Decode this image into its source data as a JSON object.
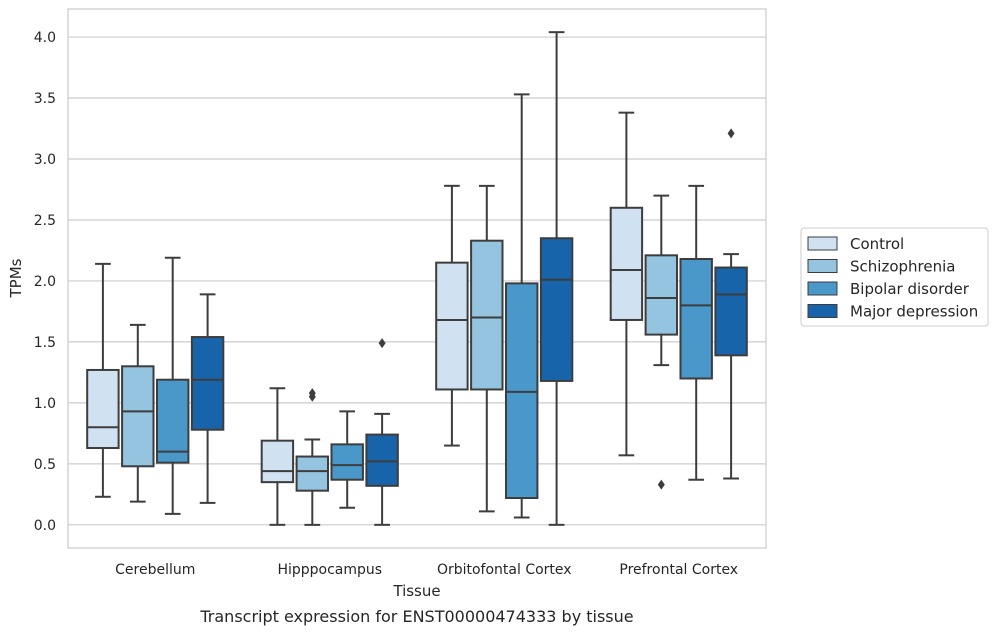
{
  "chart_data": {
    "type": "box",
    "xlabel": "Tissue",
    "ylabel": "TPMs",
    "caption": "Transcript expression for ENST00000474333 by tissue",
    "ylim": [
      -0.19,
      4.23
    ],
    "yticks": [
      "0.0",
      "0.5",
      "1.0",
      "1.5",
      "2.0",
      "2.5",
      "3.0",
      "3.5",
      "4.0"
    ],
    "grid": "horizontal",
    "legend_position": "right",
    "categories": [
      "Cerebellum",
      "Hipppocampus",
      "Orbitofontal Cortex",
      "Prefrontal Cortex"
    ],
    "series": [
      {
        "name": "Control",
        "color": "#d0e1f2",
        "boxes": [
          {
            "whislo": 0.23,
            "q1": 0.63,
            "med": 0.8,
            "q3": 1.27,
            "whishi": 2.14,
            "fliers": []
          },
          {
            "whislo": 0.0,
            "q1": 0.35,
            "med": 0.44,
            "q3": 0.69,
            "whishi": 1.12,
            "fliers": []
          },
          {
            "whislo": 0.65,
            "q1": 1.11,
            "med": 1.68,
            "q3": 2.15,
            "whishi": 2.78,
            "fliers": []
          },
          {
            "whislo": 0.57,
            "q1": 1.68,
            "med": 2.09,
            "q3": 2.6,
            "whishi": 3.38,
            "fliers": []
          }
        ]
      },
      {
        "name": "Schizophrenia",
        "color": "#94c4df",
        "boxes": [
          {
            "whislo": 0.19,
            "q1": 0.48,
            "med": 0.93,
            "q3": 1.3,
            "whishi": 1.64,
            "fliers": []
          },
          {
            "whislo": 0.0,
            "q1": 0.28,
            "med": 0.44,
            "q3": 0.56,
            "whishi": 0.7,
            "fliers": [
              1.05,
              1.08
            ]
          },
          {
            "whislo": 0.11,
            "q1": 1.11,
            "med": 1.7,
            "q3": 2.33,
            "whishi": 2.78,
            "fliers": []
          },
          {
            "whislo": 1.31,
            "q1": 1.56,
            "med": 1.86,
            "q3": 2.21,
            "whishi": 2.7,
            "fliers": [
              0.33
            ]
          }
        ]
      },
      {
        "name": "Bipolar disorder",
        "color": "#4a98c9",
        "boxes": [
          {
            "whislo": 0.09,
            "q1": 0.51,
            "med": 0.6,
            "q3": 1.19,
            "whishi": 2.19,
            "fliers": []
          },
          {
            "whislo": 0.14,
            "q1": 0.37,
            "med": 0.49,
            "q3": 0.66,
            "whishi": 0.93,
            "fliers": []
          },
          {
            "whislo": 0.06,
            "q1": 0.22,
            "med": 1.09,
            "q3": 1.98,
            "whishi": 3.53,
            "fliers": []
          },
          {
            "whislo": 0.37,
            "q1": 1.2,
            "med": 1.8,
            "q3": 2.18,
            "whishi": 2.78,
            "fliers": []
          }
        ]
      },
      {
        "name": "Major depression",
        "color": "#1764ab",
        "boxes": [
          {
            "whislo": 0.18,
            "q1": 0.78,
            "med": 1.19,
            "q3": 1.54,
            "whishi": 1.89,
            "fliers": []
          },
          {
            "whislo": 0.0,
            "q1": 0.32,
            "med": 0.52,
            "q3": 0.74,
            "whishi": 0.91,
            "fliers": [
              1.49
            ]
          },
          {
            "whislo": 0.0,
            "q1": 1.18,
            "med": 2.01,
            "q3": 2.35,
            "whishi": 4.04,
            "fliers": []
          },
          {
            "whislo": 0.38,
            "q1": 1.39,
            "med": 1.89,
            "q3": 2.11,
            "whishi": 2.22,
            "fliers": [
              3.21
            ]
          }
        ]
      }
    ]
  }
}
